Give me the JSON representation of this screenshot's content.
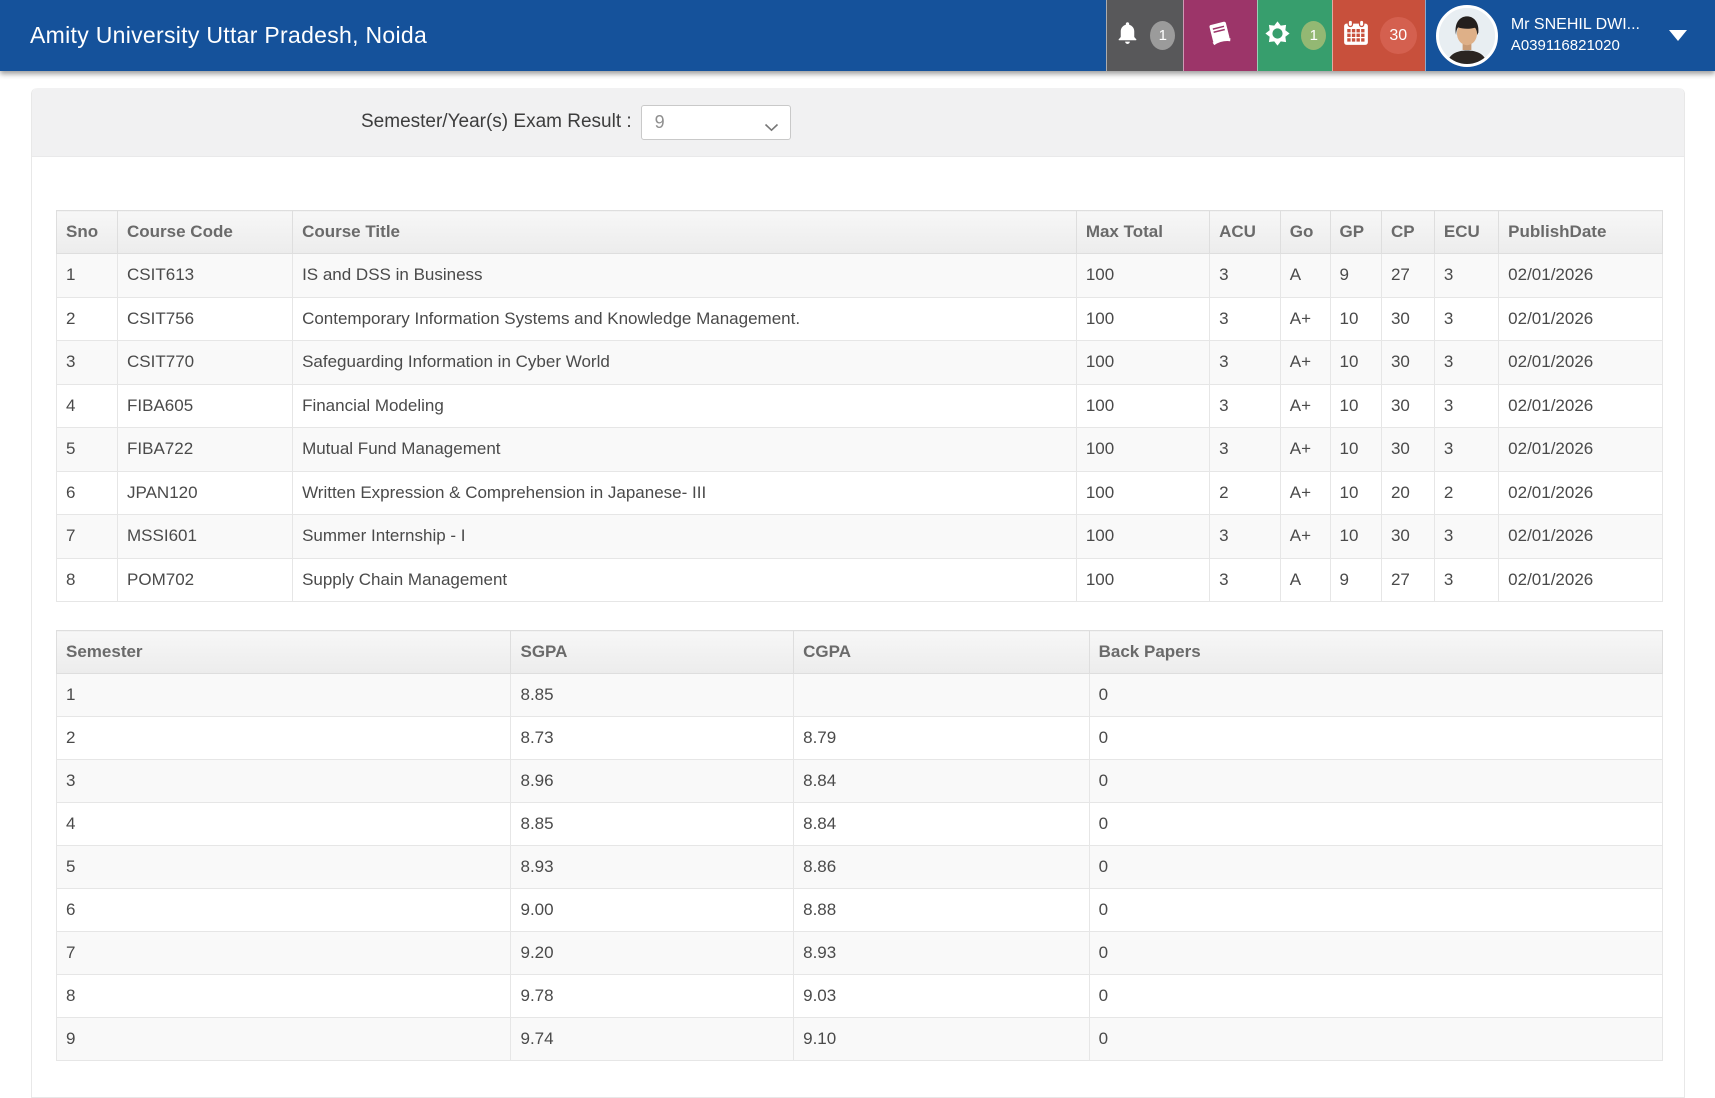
{
  "header": {
    "title": "Amity University Uttar Pradesh, Noida",
    "notifications_badge": "1",
    "settings_badge": "1",
    "calendar_badge": "30",
    "icons": [
      "bell-icon",
      "book-icon",
      "gear-icon",
      "calendar-icon",
      "chevron-down-icon"
    ],
    "user": {
      "name": "Mr SNEHIL DWI...",
      "id": "A039116821020"
    }
  },
  "filter": {
    "label": "Semester/Year(s) Exam Result :",
    "selected": "9"
  },
  "results_table": {
    "columns": [
      "Sno",
      "Course Code",
      "Course Title",
      "Max Total",
      "ACU",
      "Go",
      "GP",
      "CP",
      "ECU",
      "PublishDate"
    ],
    "rows": [
      [
        "1",
        "CSIT613",
        "IS and DSS in Business",
        "100",
        "3",
        "A",
        "9",
        "27",
        "3",
        "02/01/2026"
      ],
      [
        "2",
        "CSIT756",
        "Contemporary Information Systems and Knowledge Management.",
        "100",
        "3",
        "A+",
        "10",
        "30",
        "3",
        "02/01/2026"
      ],
      [
        "3",
        "CSIT770",
        "Safeguarding Information in Cyber World",
        "100",
        "3",
        "A+",
        "10",
        "30",
        "3",
        "02/01/2026"
      ],
      [
        "4",
        "FIBA605",
        "Financial Modeling",
        "100",
        "3",
        "A+",
        "10",
        "30",
        "3",
        "02/01/2026"
      ],
      [
        "5",
        "FIBA722",
        "Mutual Fund Management",
        "100",
        "3",
        "A+",
        "10",
        "30",
        "3",
        "02/01/2026"
      ],
      [
        "6",
        "JPAN120",
        "Written Expression & Comprehension in Japanese- III",
        "100",
        "2",
        "A+",
        "10",
        "20",
        "2",
        "02/01/2026"
      ],
      [
        "7",
        "MSSI601",
        "Summer Internship - I",
        "100",
        "3",
        "A+",
        "10",
        "30",
        "3",
        "02/01/2026"
      ],
      [
        "8",
        "POM702",
        "Supply Chain Management",
        "100",
        "3",
        "A",
        "9",
        "27",
        "3",
        "02/01/2026"
      ]
    ]
  },
  "summary_table": {
    "columns": [
      "Semester",
      "SGPA",
      "CGPA",
      "Back Papers"
    ],
    "rows": [
      [
        "1",
        "8.85",
        "",
        "0"
      ],
      [
        "2",
        "8.73",
        "8.79",
        "0"
      ],
      [
        "3",
        "8.96",
        "8.84",
        "0"
      ],
      [
        "4",
        "8.85",
        "8.84",
        "0"
      ],
      [
        "5",
        "8.93",
        "8.86",
        "0"
      ],
      [
        "6",
        "9.00",
        "8.88",
        "0"
      ],
      [
        "7",
        "9.20",
        "8.93",
        "0"
      ],
      [
        "8",
        "9.78",
        "9.03",
        "0"
      ],
      [
        "9",
        "9.74",
        "9.10",
        "0"
      ]
    ]
  },
  "colors": {
    "header_blue": "#15529b",
    "block_gray": "#58585a",
    "block_purple": "#9c3569",
    "block_green": "#379e6d",
    "block_red": "#c8503c",
    "badge_gray": "#9b9b9b",
    "badge_green": "#93b873",
    "badge_red": "#d4604f",
    "band_gray": "#f1f1f2"
  }
}
